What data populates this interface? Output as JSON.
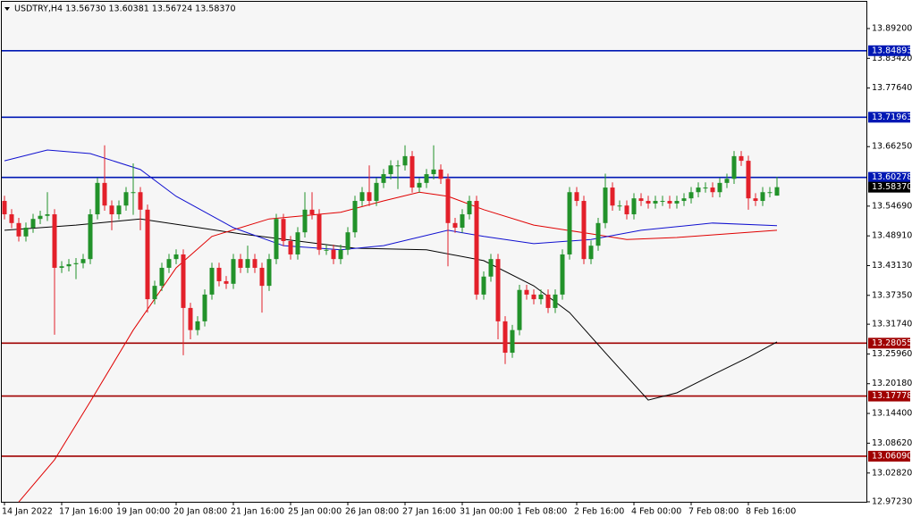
{
  "chart_data": {
    "type": "candlestick",
    "header": "USDTRY,H4  13.56730 13.60381 13.56724 13.58370",
    "categories": [
      "14 Jan 2022",
      null,
      null,
      null,
      null,
      null,
      null,
      null,
      "17 Jan 16:00",
      null,
      null,
      null,
      null,
      null,
      null,
      null,
      "19 Jan 00:00",
      null,
      null,
      null,
      null,
      null,
      null,
      null,
      "20 Jan 08:00",
      null,
      null,
      null,
      null,
      null,
      null,
      null,
      "21 Jan 16:00",
      null,
      null,
      null,
      null,
      null,
      null,
      null,
      "25 Jan 00:00",
      null,
      null,
      null,
      null,
      null,
      null,
      null,
      "26 Jan 08:00",
      null,
      null,
      null,
      null,
      null,
      null,
      null,
      "27 Jan 16:00",
      null,
      null,
      null,
      null,
      null,
      null,
      null,
      "31 Jan 00:00",
      null,
      null,
      null,
      null,
      null,
      null,
      null,
      "1 Feb 08:00",
      null,
      null,
      null,
      null,
      null,
      null,
      null,
      "2 Feb 16:00",
      null,
      null,
      null,
      null,
      null,
      null,
      null,
      "4 Feb 00:00",
      null,
      null,
      null,
      null,
      null,
      null,
      null,
      "7 Feb 08:00",
      null,
      null,
      null,
      null,
      null,
      null,
      null,
      "8 Feb 16:00",
      null,
      null,
      null,
      null
    ],
    "ohlc": [
      [
        13.557,
        13.567,
        13.521,
        13.531
      ],
      [
        13.531,
        13.541,
        13.504,
        13.514
      ],
      [
        13.514,
        13.524,
        13.478,
        13.488
      ],
      [
        13.488,
        13.515,
        13.478,
        13.505
      ],
      [
        13.505,
        13.532,
        13.495,
        13.522
      ],
      [
        13.522,
        13.538,
        13.512,
        13.528
      ],
      [
        13.528,
        13.574,
        13.518,
        13.531
      ],
      [
        13.531,
        13.541,
        13.297,
        13.427
      ],
      [
        13.427,
        13.44,
        13.417,
        13.43
      ],
      [
        13.43,
        13.444,
        13.42,
        13.434
      ],
      [
        13.434,
        13.446,
        13.405,
        13.436
      ],
      [
        13.436,
        13.454,
        13.426,
        13.444
      ],
      [
        13.444,
        13.541,
        13.434,
        13.531
      ],
      [
        13.531,
        13.602,
        13.521,
        13.592
      ],
      [
        13.592,
        13.665,
        13.538,
        13.548
      ],
      [
        13.548,
        13.558,
        13.5,
        13.531
      ],
      [
        13.531,
        13.558,
        13.521,
        13.548
      ],
      [
        13.548,
        13.584,
        13.538,
        13.574
      ],
      [
        13.574,
        13.63,
        13.53,
        13.574
      ],
      [
        13.574,
        13.584,
        13.5,
        13.54
      ],
      [
        13.54,
        13.55,
        13.34,
        13.366
      ],
      [
        13.366,
        13.402,
        13.356,
        13.392
      ],
      [
        13.392,
        13.437,
        13.382,
        13.427
      ],
      [
        13.427,
        13.454,
        13.417,
        13.444
      ],
      [
        13.444,
        13.463,
        13.434,
        13.453
      ],
      [
        13.453,
        13.463,
        13.257,
        13.349
      ],
      [
        13.349,
        13.359,
        13.288,
        13.306
      ],
      [
        13.306,
        13.333,
        13.296,
        13.323
      ],
      [
        13.323,
        13.385,
        13.313,
        13.375
      ],
      [
        13.375,
        13.437,
        13.365,
        13.427
      ],
      [
        13.427,
        13.437,
        13.391,
        13.401
      ],
      [
        13.401,
        13.411,
        13.386,
        13.396
      ],
      [
        13.396,
        13.454,
        13.386,
        13.444
      ],
      [
        13.444,
        13.454,
        13.417,
        13.427
      ],
      [
        13.427,
        13.47,
        13.417,
        13.444
      ],
      [
        13.444,
        13.454,
        13.417,
        13.427
      ],
      [
        13.427,
        13.437,
        13.34,
        13.392
      ],
      [
        13.392,
        13.454,
        13.382,
        13.444
      ],
      [
        13.444,
        13.532,
        13.434,
        13.522
      ],
      [
        13.522,
        13.532,
        13.469,
        13.479
      ],
      [
        13.479,
        13.489,
        13.443,
        13.453
      ],
      [
        13.453,
        13.506,
        13.443,
        13.496
      ],
      [
        13.496,
        13.574,
        13.486,
        13.54
      ],
      [
        13.54,
        13.574,
        13.521,
        13.531
      ],
      [
        13.531,
        13.541,
        13.452,
        13.462
      ],
      [
        13.462,
        13.472,
        13.452,
        13.462
      ],
      [
        13.462,
        13.472,
        13.434,
        13.444
      ],
      [
        13.444,
        13.472,
        13.434,
        13.462
      ],
      [
        13.462,
        13.506,
        13.452,
        13.496
      ],
      [
        13.496,
        13.567,
        13.486,
        13.557
      ],
      [
        13.557,
        13.584,
        13.547,
        13.574
      ],
      [
        13.574,
        13.626,
        13.547,
        13.557
      ],
      [
        13.557,
        13.602,
        13.547,
        13.592
      ],
      [
        13.592,
        13.619,
        13.582,
        13.609
      ],
      [
        13.609,
        13.636,
        13.599,
        13.626
      ],
      [
        13.626,
        13.636,
        13.58,
        13.626
      ],
      [
        13.626,
        13.665,
        13.616,
        13.644
      ],
      [
        13.644,
        13.654,
        13.573,
        13.583
      ],
      [
        13.583,
        13.602,
        13.573,
        13.592
      ],
      [
        13.592,
        13.619,
        13.582,
        13.609
      ],
      [
        13.609,
        13.665,
        13.599,
        13.618
      ],
      [
        13.618,
        13.628,
        13.59,
        13.6
      ],
      [
        13.6,
        13.61,
        13.43,
        13.514
      ],
      [
        13.514,
        13.524,
        13.495,
        13.505
      ],
      [
        13.505,
        13.541,
        13.495,
        13.531
      ],
      [
        13.531,
        13.567,
        13.521,
        13.557
      ],
      [
        13.557,
        13.567,
        13.365,
        13.375
      ],
      [
        13.375,
        13.42,
        13.365,
        13.41
      ],
      [
        13.41,
        13.454,
        13.4,
        13.444
      ],
      [
        13.444,
        13.454,
        13.288,
        13.323
      ],
      [
        13.323,
        13.333,
        13.24,
        13.262
      ],
      [
        13.262,
        13.316,
        13.252,
        13.306
      ],
      [
        13.306,
        13.394,
        13.296,
        13.384
      ],
      [
        13.384,
        13.394,
        13.365,
        13.375
      ],
      [
        13.375,
        13.385,
        13.356,
        13.366
      ],
      [
        13.366,
        13.385,
        13.356,
        13.375
      ],
      [
        13.375,
        13.385,
        13.339,
        13.349
      ],
      [
        13.349,
        13.385,
        13.339,
        13.375
      ],
      [
        13.375,
        13.463,
        13.365,
        13.453
      ],
      [
        13.453,
        13.584,
        13.443,
        13.574
      ],
      [
        13.574,
        13.584,
        13.547,
        13.557
      ],
      [
        13.557,
        13.567,
        13.434,
        13.444
      ],
      [
        13.444,
        13.48,
        13.434,
        13.47
      ],
      [
        13.47,
        13.524,
        13.46,
        13.514
      ],
      [
        13.514,
        13.61,
        13.504,
        13.583
      ],
      [
        13.583,
        13.593,
        13.538,
        13.548
      ],
      [
        13.548,
        13.558,
        13.538,
        13.548
      ],
      [
        13.548,
        13.558,
        13.521,
        13.531
      ],
      [
        13.531,
        13.572,
        13.521,
        13.562
      ],
      [
        13.562,
        13.572,
        13.547,
        13.557
      ],
      [
        13.557,
        13.567,
        13.542,
        13.552
      ],
      [
        13.552,
        13.567,
        13.542,
        13.557
      ],
      [
        13.557,
        13.567,
        13.547,
        13.557
      ],
      [
        13.557,
        13.567,
        13.542,
        13.552
      ],
      [
        13.552,
        13.567,
        13.542,
        13.557
      ],
      [
        13.557,
        13.572,
        13.547,
        13.562
      ],
      [
        13.562,
        13.584,
        13.552,
        13.574
      ],
      [
        13.574,
        13.593,
        13.564,
        13.583
      ],
      [
        13.583,
        13.593,
        13.573,
        13.583
      ],
      [
        13.583,
        13.593,
        13.564,
        13.574
      ],
      [
        13.574,
        13.602,
        13.564,
        13.592
      ],
      [
        13.592,
        13.61,
        13.582,
        13.6
      ],
      [
        13.6,
        13.654,
        13.59,
        13.644
      ],
      [
        13.644,
        13.654,
        13.625,
        13.635
      ],
      [
        13.635,
        13.645,
        13.54,
        13.562
      ],
      [
        13.562,
        13.572,
        13.547,
        13.557
      ],
      [
        13.557,
        13.584,
        13.547,
        13.574
      ],
      [
        13.574,
        13.584,
        13.564,
        13.574
      ],
      [
        13.5673,
        13.60381,
        13.56724,
        13.5837
      ]
    ],
    "up_color": "#22922a",
    "down_color": "#e3202a",
    "lines": [
      {
        "color": "#000000",
        "x": [
          0,
          10,
          19,
          33,
          49,
          59,
          67,
          74,
          79,
          84,
          90,
          94,
          99,
          104,
          108
        ],
        "values": [
          13.5,
          13.51,
          13.522,
          13.493,
          13.465,
          13.462,
          13.441,
          13.392,
          13.34,
          13.262,
          13.17,
          13.184,
          13.219,
          13.253,
          13.283
        ]
      },
      {
        "color": "#e00000",
        "x": [
          2,
          7,
          12,
          18,
          24,
          29,
          37,
          47,
          53,
          58,
          62,
          67,
          74,
          82,
          87,
          94,
          108
        ],
        "values": [
          12.972,
          13.054,
          13.167,
          13.306,
          13.427,
          13.488,
          13.522,
          13.535,
          13.557,
          13.574,
          13.566,
          13.54,
          13.51,
          13.493,
          13.482,
          13.486,
          13.5
        ]
      },
      {
        "color": "#1010d0",
        "x": [
          0,
          6,
          12,
          19,
          24,
          32,
          39,
          47,
          53,
          62,
          67,
          74,
          82,
          89,
          99,
          108
        ],
        "values": [
          13.635,
          13.656,
          13.649,
          13.618,
          13.566,
          13.505,
          13.47,
          13.462,
          13.47,
          13.5,
          13.488,
          13.474,
          13.482,
          13.5,
          13.514,
          13.509
        ]
      }
    ],
    "levels": [
      {
        "value": 13.84893,
        "label": "13.84893",
        "color": "#0018b4"
      },
      {
        "value": 13.71963,
        "label": "13.71963",
        "color": "#0018b4"
      },
      {
        "value": 13.60278,
        "label": "13.60278",
        "color": "#0018b4"
      },
      {
        "value": 13.28055,
        "label": "13.28055",
        "color": "#a00000"
      },
      {
        "value": 13.17778,
        "label": "13.17778",
        "color": "#a00000"
      },
      {
        "value": 13.0609,
        "label": "13.06090",
        "color": "#a00000"
      }
    ],
    "last_price": {
      "value": 13.5837,
      "label": "13.58370"
    },
    "ylim": [
      12.9723,
      13.944
    ],
    "yticks": [
      {
        "value": 13.892,
        "label": "13.89200"
      },
      {
        "value": 13.8342,
        "label": "13.83420"
      },
      {
        "value": 13.7764,
        "label": "13.77640"
      },
      {
        "value": 13.6625,
        "label": "13.66250"
      },
      {
        "value": 13.5469,
        "label": "13.54690"
      },
      {
        "value": 13.4891,
        "label": "13.48910"
      },
      {
        "value": 13.4313,
        "label": "13.43130"
      },
      {
        "value": 13.3735,
        "label": "13.37350"
      },
      {
        "value": 13.3174,
        "label": "13.31740"
      },
      {
        "value": 13.2596,
        "label": "13.25960"
      },
      {
        "value": 13.2018,
        "label": "13.20180"
      },
      {
        "value": 13.144,
        "label": "13.14400"
      },
      {
        "value": 13.0862,
        "label": "13.08620"
      },
      {
        "value": 13.0282,
        "label": "13.02820"
      },
      {
        "value": 12.9723,
        "label": "12.97230"
      }
    ]
  }
}
